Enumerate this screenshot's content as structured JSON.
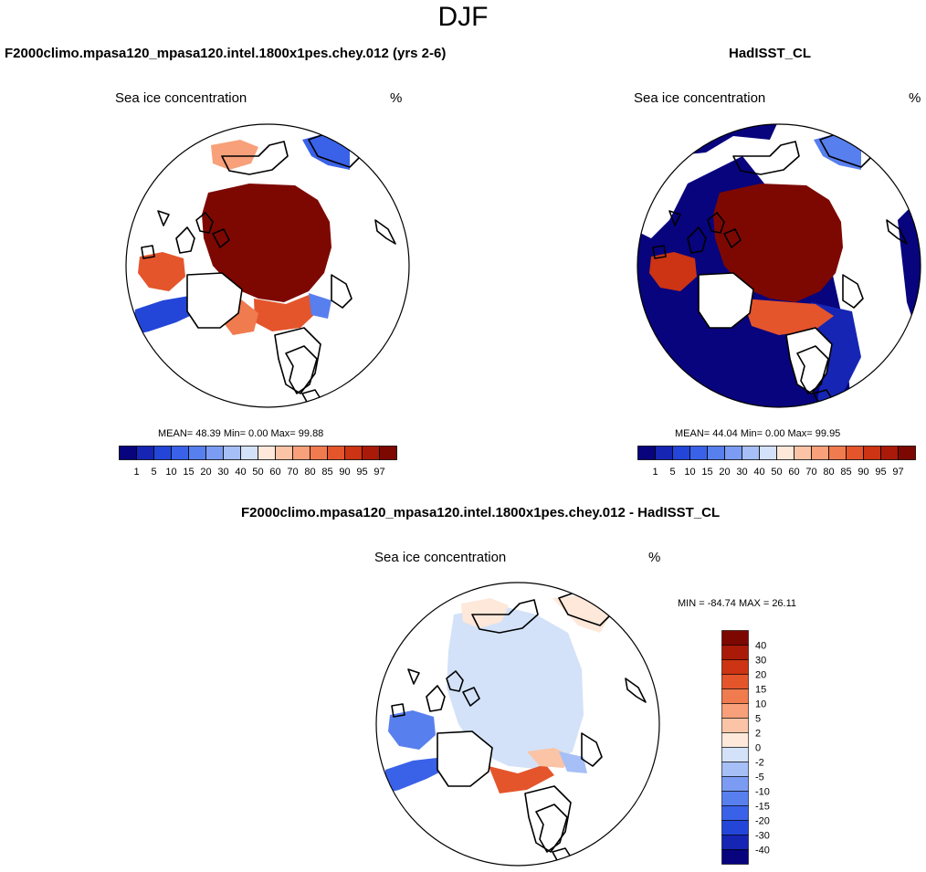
{
  "season": "DJF",
  "panels": {
    "model": {
      "title": "F2000climo.mpasa120_mpasa120.intel.1800x1pes.chey.012 (yrs 2-6)",
      "variable": "Sea ice concentration",
      "units": "%",
      "stats": "MEAN=  48.39  Min=    0.00  Max=  99.88"
    },
    "obs": {
      "title": "HadISST_CL",
      "variable": "Sea ice concentration",
      "units": "%",
      "stats": "MEAN=  44.04  Min=    0.00  Max=  99.95"
    },
    "diff": {
      "title": "F2000climo.mpasa120_mpasa120.intel.1800x1pes.chey.012 - HadISST_CL",
      "variable": "Sea ice concentration",
      "units": "%",
      "stats": "MIN = -84.74 MAX =  26.11"
    }
  },
  "colorbars": {
    "concentration": {
      "labels": [
        "1",
        "5",
        "10",
        "15",
        "20",
        "30",
        "40",
        "50",
        "60",
        "70",
        "80",
        "85",
        "90",
        "95",
        "97"
      ],
      "colors": [
        "#08047d",
        "#1625b3",
        "#2346d8",
        "#3a62e8",
        "#587fee",
        "#7b9cf2",
        "#a6bff6",
        "#d3e2f8",
        "#fde8da",
        "#fbc4a6",
        "#f7a07a",
        "#f07b4f",
        "#e4552c",
        "#cc3413",
        "#aa1a08",
        "#7d0802"
      ]
    },
    "difference": {
      "labels": [
        "40",
        "30",
        "20",
        "15",
        "10",
        "5",
        "2",
        "0",
        "-2",
        "-5",
        "-10",
        "-15",
        "-20",
        "-30",
        "-40"
      ],
      "colors": [
        "#7d0802",
        "#aa1a08",
        "#cc3413",
        "#e4552c",
        "#f07b4f",
        "#f7a07a",
        "#fbc4a6",
        "#fde8da",
        "#d3e2f8",
        "#a6bff6",
        "#7b9cf2",
        "#587fee",
        "#3a62e8",
        "#2346d8",
        "#1625b3",
        "#08047d"
      ]
    }
  },
  "chart_data": [
    {
      "type": "heatmap",
      "title": "F2000climo.mpasa120_mpasa120.intel.1800x1pes.chey.012 (yrs 2-6)",
      "subtitle": "Sea ice concentration",
      "units": "%",
      "projection": "north polar stereographic",
      "mean": 48.39,
      "min": 0.0,
      "max": 99.88,
      "levels": [
        1,
        5,
        10,
        15,
        20,
        30,
        40,
        50,
        60,
        70,
        80,
        85,
        90,
        95,
        97
      ]
    },
    {
      "type": "heatmap",
      "title": "HadISST_CL",
      "subtitle": "Sea ice concentration",
      "units": "%",
      "projection": "north polar stereographic",
      "mean": 44.04,
      "min": 0.0,
      "max": 99.95,
      "levels": [
        1,
        5,
        10,
        15,
        20,
        30,
        40,
        50,
        60,
        70,
        80,
        85,
        90,
        95,
        97
      ]
    },
    {
      "type": "heatmap",
      "title": "F2000climo.mpasa120_mpasa120.intel.1800x1pes.chey.012 - HadISST_CL",
      "subtitle": "Sea ice concentration",
      "units": "%",
      "projection": "north polar stereographic",
      "min": -84.74,
      "max": 26.11,
      "levels": [
        -40,
        -30,
        -20,
        -15,
        -10,
        -5,
        -2,
        0,
        2,
        5,
        10,
        15,
        20,
        30,
        40
      ]
    }
  ]
}
